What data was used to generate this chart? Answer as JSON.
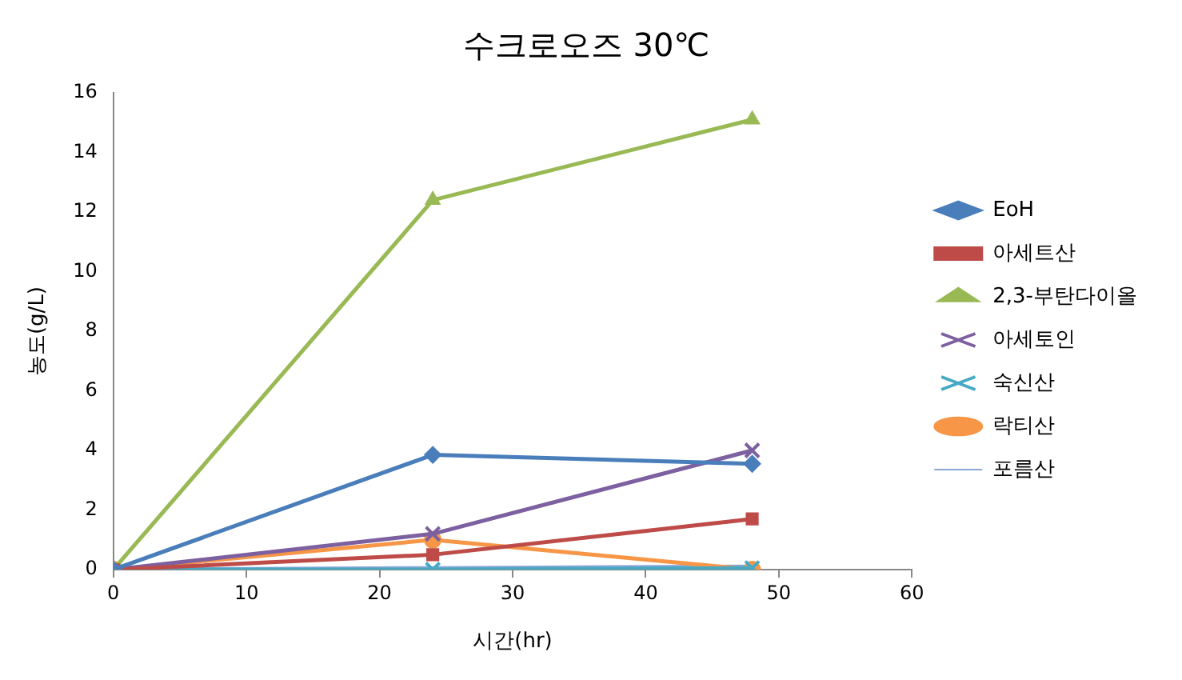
{
  "chart_data": {
    "type": "line",
    "title": "수크로오즈 30℃",
    "xlabel": "시간(hr)",
    "ylabel": "농도(g/L)",
    "x": [
      0,
      24,
      48
    ],
    "xlim": [
      0,
      60
    ],
    "xticks": [
      0,
      10,
      20,
      30,
      40,
      50,
      60
    ],
    "ylim": [
      0,
      16
    ],
    "yticks": [
      0,
      2,
      4,
      6,
      8,
      10,
      12,
      14,
      16
    ],
    "grid": false,
    "legend": "right",
    "line_style": "solid",
    "series": [
      {
        "name": "EoH",
        "color": "#4a7ebb",
        "marker": "diamond",
        "values": [
          0,
          3.85,
          3.55
        ]
      },
      {
        "name": "아세트산",
        "color": "#be4b48",
        "marker": "square",
        "values": [
          0,
          0.5,
          1.7
        ]
      },
      {
        "name": "2,3-부탄다이올",
        "color": "#98b954",
        "marker": "triangle",
        "values": [
          0,
          12.4,
          15.1
        ]
      },
      {
        "name": "아세토인",
        "color": "#7d60a0",
        "marker": "cross",
        "values": [
          0,
          1.2,
          4.0
        ]
      },
      {
        "name": "숙신산",
        "color": "#46aac5",
        "marker": "cross",
        "values": [
          0,
          0,
          0.05
        ]
      },
      {
        "name": "락티산",
        "color": "#f79646",
        "marker": "circle",
        "values": [
          0,
          1.0,
          0
        ]
      },
      {
        "name": "포름산",
        "color": "#8aa6d8",
        "marker": "none",
        "values": [
          0,
          0.05,
          0.1
        ]
      }
    ]
  }
}
